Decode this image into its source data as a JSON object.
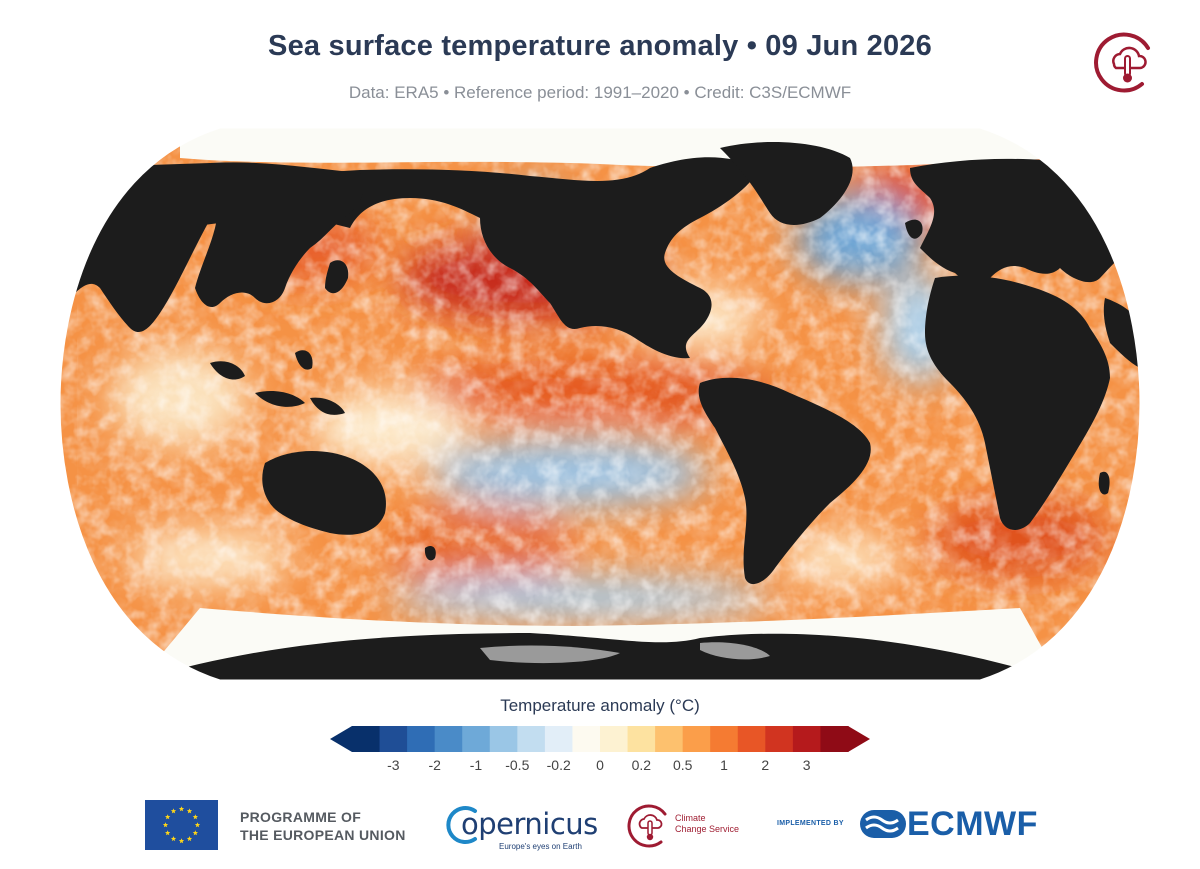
{
  "title": "Sea surface temperature anomaly • 09 Jun 2026",
  "subtitle": "Data: ERA5 • Reference period: 1991–2020 • Credit: C3S/ECMWF",
  "legend": {
    "title": "Temperature anomaly (°C)",
    "ticks": [
      "-3",
      "-2",
      "-1",
      "-0.5",
      "-0.2",
      "0",
      "0.2",
      "0.5",
      "1",
      "2",
      "3"
    ],
    "colors": [
      "#08306b",
      "#1f4e96",
      "#2f6db5",
      "#4a8bc8",
      "#6ea9d8",
      "#9ac6e6",
      "#c2ddf0",
      "#e2eef8",
      "#fdfaf0",
      "#fdf2d2",
      "#fde2a0",
      "#fdc16e",
      "#fb9e4a",
      "#f57b32",
      "#e85626",
      "#d13420",
      "#b51a1c",
      "#8f0b16"
    ],
    "below_color": "#08306b",
    "above_color": "#8f0b16"
  },
  "map": {
    "projection": "Robinson",
    "land_color": "#1c1c1c",
    "ice_color": "#fbfbf6",
    "ice_shelf_color": "#9a9a9a"
  },
  "footer": {
    "eu_line1": "PROGRAMME OF",
    "eu_line2": "THE EUROPEAN UNION",
    "copernicus_word": "opernicus",
    "copernicus_tagline": "Europe's eyes on Earth",
    "c3s_line1": "Climate",
    "c3s_line2": "Change Service",
    "implemented_by": "IMPLEMENTED BY",
    "ecmwf": "ECMWF"
  },
  "icons": {
    "c3s": "thermometer-cloud-logo",
    "eu": "eu-flag-icon",
    "ecmwf": "ecmwf-waves-icon"
  }
}
